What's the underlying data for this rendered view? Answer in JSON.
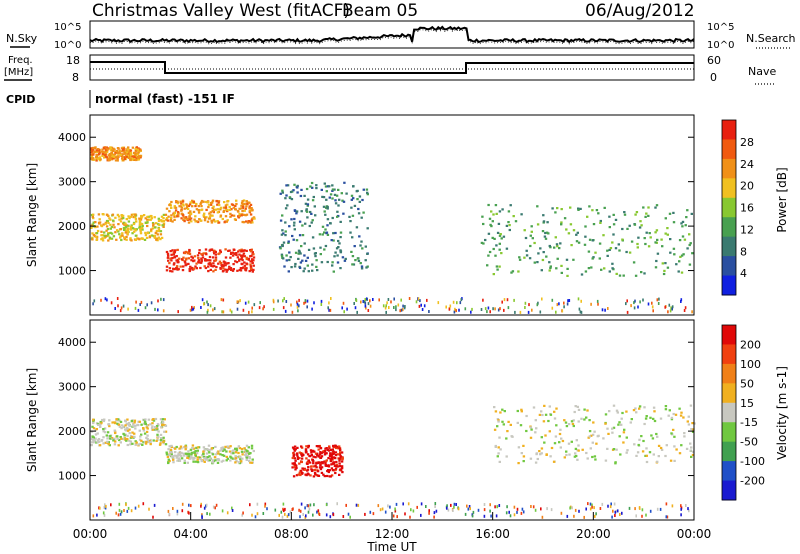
{
  "header": {
    "radar": "Christmas Valley West (fitACF)",
    "beam": "Beam 05",
    "date": "06/Aug/2012"
  },
  "params": {
    "nsky_label": "N.Sky",
    "nsearch_label": "N.Search",
    "freq_label": "Freq.",
    "freq_unit": "[MHz]",
    "nave_label": "Nave",
    "cpid_label": "CPID",
    "cpid_text": "normal (fast) -151 IF",
    "noise_ticks": [
      "10^5",
      "10^0"
    ],
    "freq_ticks": [
      "18",
      "8"
    ],
    "nave_ticks": [
      "60",
      "0"
    ]
  },
  "chart_data": [
    {
      "type": "heatmap",
      "name": "power",
      "ylabel": "Slant Range [km]",
      "xlabel": "",
      "ylim": [
        0,
        4500
      ],
      "yticks": [
        "4000",
        "3000",
        "2000",
        "1000"
      ],
      "colorbar_label": "Power [dB]",
      "colorbar_ticks": [
        "28",
        "24",
        "20",
        "16",
        "12",
        "8",
        "4"
      ],
      "colors": [
        "#1020e0",
        "#2a4fa0",
        "#3a7a70",
        "#48a050",
        "#88c830",
        "#f0c020",
        "#f09018",
        "#f05a10",
        "#e82010"
      ],
      "features": [
        {
          "t0": 0.0,
          "t1": 3.0,
          "r0": 1700,
          "r1": 2300,
          "level": 5
        },
        {
          "t0": 0.0,
          "t1": 2.0,
          "r0": 3500,
          "r1": 3800,
          "level": 6
        },
        {
          "t0": 3.0,
          "t1": 6.5,
          "r0": 1000,
          "r1": 1500,
          "level": 8
        },
        {
          "t0": 3.0,
          "t1": 6.5,
          "r0": 2100,
          "r1": 2600,
          "level": 6
        },
        {
          "t0": 7.5,
          "t1": 11.0,
          "r0": 1000,
          "r1": 3000,
          "level": 2
        },
        {
          "t0": 15.5,
          "t1": 24.0,
          "r0": 900,
          "r1": 2500,
          "level": 3
        }
      ]
    },
    {
      "type": "heatmap",
      "name": "velocity",
      "ylabel": "Slant Range [km]",
      "xlabel": "Time UT",
      "ylim": [
        0,
        4500
      ],
      "yticks": [
        "4000",
        "3000",
        "2000",
        "1000"
      ],
      "xticks": [
        "00:00",
        "04:00",
        "08:00",
        "12:00",
        "16:00",
        "20:00",
        "00:00"
      ],
      "colorbar_label": "Velocity [m s-1]",
      "colorbar_ticks": [
        "200",
        "100",
        "50",
        "15",
        "-15",
        "-50",
        "-100",
        "-200"
      ],
      "colors": [
        "#1a1ad0",
        "#2050c8",
        "#40a050",
        "#70c840",
        "#c8c8c0",
        "#f0b020",
        "#f08018",
        "#f04010",
        "#e00808"
      ],
      "features": [
        {
          "t0": 0.0,
          "t1": 3.0,
          "r0": 1700,
          "r1": 2300,
          "level": 4
        },
        {
          "t0": 3.0,
          "t1": 6.5,
          "r0": 1300,
          "r1": 1700,
          "level": 4
        },
        {
          "t0": 8.0,
          "t1": 10.0,
          "r0": 1000,
          "r1": 1700,
          "level": 8
        },
        {
          "t0": 16.0,
          "t1": 24.0,
          "r0": 1300,
          "r1": 2600,
          "level": 4
        }
      ]
    }
  ]
}
